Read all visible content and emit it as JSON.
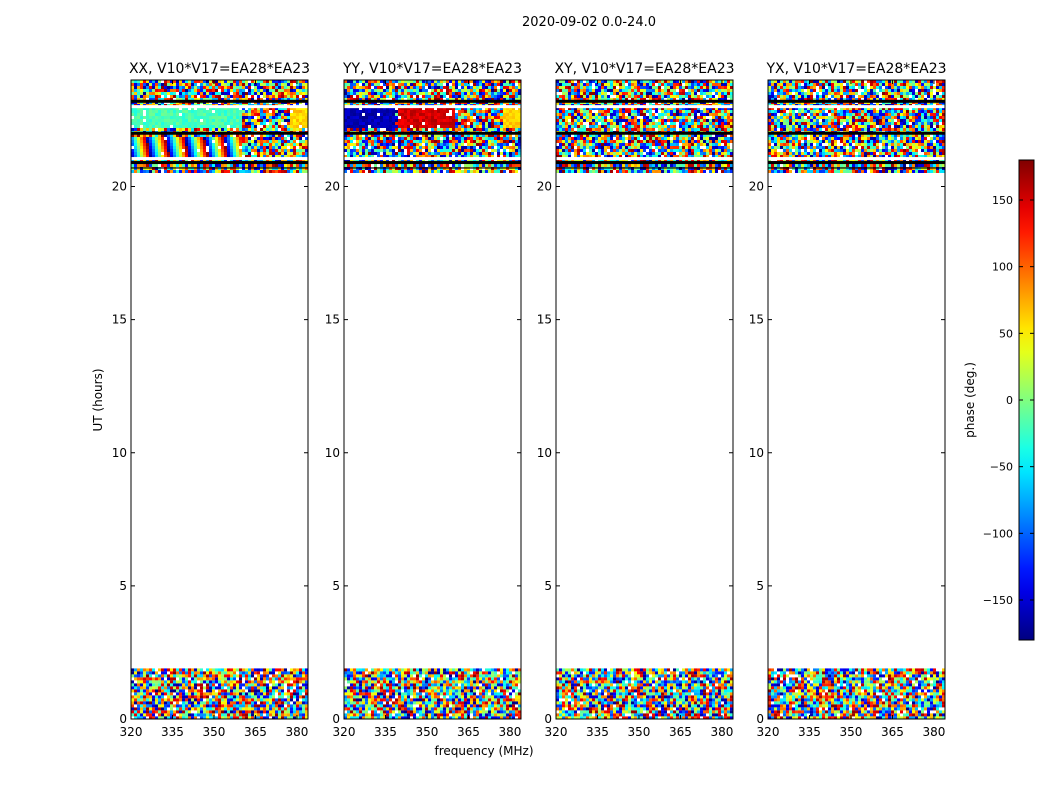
{
  "suptitle": "2020-09-02 0.0-24.0",
  "xlabel": "frequency (MHz)",
  "ylabel": "UT (hours)",
  "chart_data": {
    "type": "heatmap",
    "xlim": [
      320,
      384
    ],
    "ylim": [
      0,
      24
    ],
    "xticks": [
      320,
      335,
      350,
      365,
      380
    ],
    "yticks": [
      0,
      5,
      10,
      15,
      20
    ],
    "colorbar": {
      "label": "phase (deg.)",
      "range": [
        -180,
        180
      ],
      "ticks": [
        -150,
        -100,
        -50,
        0,
        50,
        100,
        150
      ],
      "colormap": "jet"
    },
    "data_time_ranges_hours": [
      [
        0.0,
        1.9
      ],
      [
        20.6,
        24.0
      ]
    ],
    "gap_rows_hours": [
      20.9,
      21.05,
      22.0,
      23.0,
      23.2
    ],
    "panels": [
      {
        "title": "XX, V10*V17=EA28*EA23",
        "coherent": [
          {
            "t": [
              22.2,
              23.0
            ],
            "f": [
              320,
              360
            ],
            "phase": -20
          },
          {
            "t": [
              22.2,
              23.0
            ],
            "f": [
              378,
              384
            ],
            "phase": 60
          },
          {
            "t": [
              21.1,
              21.9
            ],
            "f": [
              320,
              360
            ],
            "phase": "wrapping"
          }
        ]
      },
      {
        "title": "YY, V10*V17=EA28*EA23",
        "coherent": [
          {
            "t": [
              22.2,
              23.0
            ],
            "f": [
              320,
              338
            ],
            "phase": -160
          },
          {
            "t": [
              22.2,
              23.0
            ],
            "f": [
              340,
              360
            ],
            "phase": 150
          },
          {
            "t": [
              22.2,
              23.0
            ],
            "f": [
              378,
              384
            ],
            "phase": 60
          }
        ]
      },
      {
        "title": "XY, V10*V17=EA28*EA23",
        "coherent": []
      },
      {
        "title": "YX, V10*V17=EA28*EA23",
        "coherent": []
      }
    ]
  }
}
